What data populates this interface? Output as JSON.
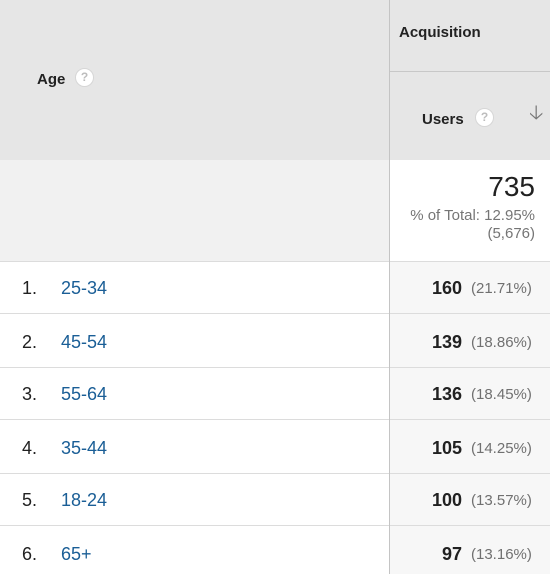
{
  "header": {
    "dimension_label": "Age",
    "group_label": "Acquisition",
    "metric_label": "Users",
    "help_icon": "question-mark-icon",
    "sort_icon": "arrow-down-icon"
  },
  "totals": {
    "value": "735",
    "pct_line1": "% of Total: 12.95%",
    "pct_line2": "(5,676)"
  },
  "rows": [
    {
      "rank": "1.",
      "age": "25-34",
      "users": "160",
      "pct": "(21.71%)"
    },
    {
      "rank": "2.",
      "age": "45-54",
      "users": "139",
      "pct": "(18.86%)"
    },
    {
      "rank": "3.",
      "age": "55-64",
      "users": "136",
      "pct": "(18.45%)"
    },
    {
      "rank": "4.",
      "age": "35-44",
      "users": "105",
      "pct": "(14.25%)"
    },
    {
      "rank": "5.",
      "age": "18-24",
      "users": "100",
      "pct": "(13.57%)"
    },
    {
      "rank": "6.",
      "age": "65+",
      "users": "97",
      "pct": "(13.16%)"
    }
  ],
  "colors": {
    "header_bg": "#e6e6e6",
    "link": "#1a5e96",
    "totals_bg": "#f1f1f1"
  }
}
